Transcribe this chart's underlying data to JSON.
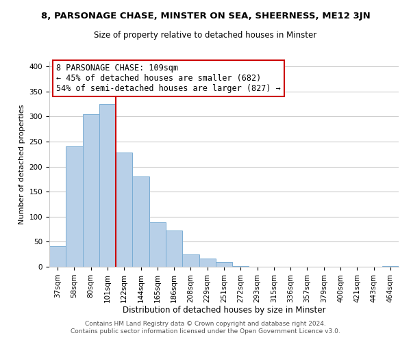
{
  "title": "8, PARSONAGE CHASE, MINSTER ON SEA, SHEERNESS, ME12 3JN",
  "subtitle": "Size of property relative to detached houses in Minster",
  "xlabel": "Distribution of detached houses by size in Minster",
  "ylabel": "Number of detached properties",
  "bar_labels": [
    "37sqm",
    "58sqm",
    "80sqm",
    "101sqm",
    "122sqm",
    "144sqm",
    "165sqm",
    "186sqm",
    "208sqm",
    "229sqm",
    "251sqm",
    "272sqm",
    "293sqm",
    "315sqm",
    "336sqm",
    "357sqm",
    "379sqm",
    "400sqm",
    "421sqm",
    "443sqm",
    "464sqm"
  ],
  "bar_values": [
    41,
    240,
    305,
    325,
    228,
    180,
    89,
    73,
    25,
    17,
    10,
    1,
    0,
    0,
    0,
    0,
    0,
    0,
    0,
    0,
    2
  ],
  "bar_color": "#b8d0e8",
  "bar_edge_color": "#7aadd4",
  "vline_x": 3.5,
  "vline_color": "#cc0000",
  "annotation_title": "8 PARSONAGE CHASE: 109sqm",
  "annotation_line1": "← 45% of detached houses are smaller (682)",
  "annotation_line2": "54% of semi-detached houses are larger (827) →",
  "annotation_box_color": "#ffffff",
  "annotation_box_edge": "#cc0000",
  "ylim": [
    0,
    410
  ],
  "yticks": [
    0,
    50,
    100,
    150,
    200,
    250,
    300,
    350,
    400
  ],
  "footer1": "Contains HM Land Registry data © Crown copyright and database right 2024.",
  "footer2": "Contains public sector information licensed under the Open Government Licence v3.0.",
  "background_color": "#ffffff",
  "grid_color": "#cccccc",
  "title_fontsize": 9.5,
  "subtitle_fontsize": 8.5,
  "ylabel_fontsize": 8.0,
  "xlabel_fontsize": 8.5,
  "tick_fontsize": 7.5,
  "annotation_fontsize": 8.5,
  "footer_fontsize": 6.5
}
